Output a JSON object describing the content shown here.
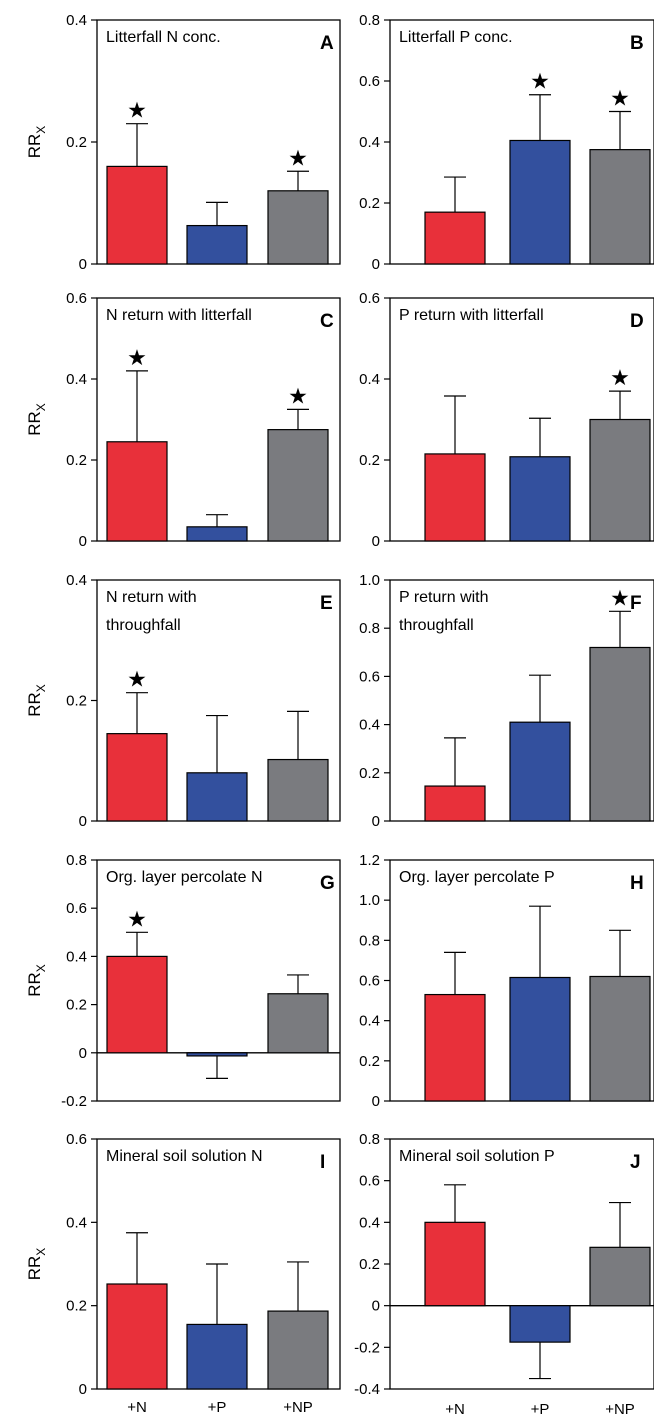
{
  "figure": {
    "y_axis_label": "RR",
    "y_axis_label_subscript": "X",
    "categories": [
      "+N",
      "+P",
      "+NP"
    ],
    "colors": {
      "+N": "#e8303a",
      "+P": "#33509e",
      "+NP": "#7a7b7f"
    },
    "significance_marker": "★"
  },
  "chart_data": [
    {
      "panel": "A",
      "type": "bar",
      "title_lines": [
        "Litterfall N conc."
      ],
      "ylim": [
        0,
        0.4
      ],
      "yticks": [
        "0",
        "0.2",
        "0.4"
      ],
      "categories": [
        "+N",
        "+P",
        "+NP"
      ],
      "values": [
        0.16,
        0.063,
        0.12
      ],
      "error_upper": [
        0.07,
        0.038,
        0.032
      ],
      "significant": [
        true,
        false,
        true
      ]
    },
    {
      "panel": "B",
      "type": "bar",
      "title_lines": [
        "Litterfall P conc."
      ],
      "ylim": [
        0,
        0.8
      ],
      "yticks": [
        "0",
        "0.2",
        "0.4",
        "0.6",
        "0.8"
      ],
      "categories": [
        "+N",
        "+P",
        "+NP"
      ],
      "values": [
        0.17,
        0.405,
        0.375
      ],
      "error_upper": [
        0.115,
        0.15,
        0.125
      ],
      "significant": [
        false,
        true,
        true
      ]
    },
    {
      "panel": "C",
      "type": "bar",
      "title_lines": [
        "N return with litterfall"
      ],
      "ylim": [
        0,
        0.6
      ],
      "yticks": [
        "0",
        "0.2",
        "0.4",
        "0.6"
      ],
      "categories": [
        "+N",
        "+P",
        "+NP"
      ],
      "values": [
        0.245,
        0.035,
        0.275
      ],
      "error_upper": [
        0.175,
        0.03,
        0.05
      ],
      "significant": [
        true,
        false,
        true
      ]
    },
    {
      "panel": "D",
      "type": "bar",
      "title_lines": [
        "P return with litterfall"
      ],
      "ylim": [
        0,
        0.6
      ],
      "yticks": [
        "0",
        "0.2",
        "0.4",
        "0.6"
      ],
      "categories": [
        "+N",
        "+P",
        "+NP"
      ],
      "values": [
        0.215,
        0.208,
        0.3
      ],
      "error_upper": [
        0.143,
        0.095,
        0.07
      ],
      "significant": [
        false,
        false,
        true
      ]
    },
    {
      "panel": "E",
      "type": "bar",
      "title_lines": [
        "N return with",
        "throughfall"
      ],
      "ylim": [
        0,
        0.4
      ],
      "yticks": [
        "0",
        "0.2",
        "0.4"
      ],
      "categories": [
        "+N",
        "+P",
        "+NP"
      ],
      "values": [
        0.145,
        0.08,
        0.102
      ],
      "error_upper": [
        0.068,
        0.095,
        0.08
      ],
      "significant": [
        true,
        false,
        false
      ]
    },
    {
      "panel": "F",
      "type": "bar",
      "title_lines": [
        "P return with",
        "throughfall"
      ],
      "ylim": [
        0,
        1.0
      ],
      "yticks": [
        "0",
        "0.2",
        "0.4",
        "0.6",
        "0.8",
        "1.0"
      ],
      "categories": [
        "+N",
        "+P",
        "+NP"
      ],
      "values": [
        0.145,
        0.41,
        0.72
      ],
      "error_upper": [
        0.2,
        0.195,
        0.15
      ],
      "significant": [
        false,
        false,
        true
      ]
    },
    {
      "panel": "G",
      "type": "bar",
      "title_lines": [
        "Org. layer percolate N"
      ],
      "ylim": [
        -0.2,
        0.8
      ],
      "yticks": [
        "-0.2",
        "0",
        "0.2",
        "0.4",
        "0.6",
        "0.8"
      ],
      "categories": [
        "+N",
        "+P",
        "+NP"
      ],
      "values": [
        0.4,
        -0.013,
        0.245
      ],
      "error_upper": [
        0.1,
        0.093,
        0.078
      ],
      "significant": [
        true,
        false,
        false
      ]
    },
    {
      "panel": "H",
      "type": "bar",
      "title_lines": [
        "Org. layer percolate P"
      ],
      "ylim": [
        0,
        1.2
      ],
      "yticks": [
        "0",
        "0.2",
        "0.4",
        "0.6",
        "0.8",
        "1.0",
        "1.2"
      ],
      "categories": [
        "+N",
        "+P",
        "+NP"
      ],
      "values": [
        0.53,
        0.615,
        0.62
      ],
      "error_upper": [
        0.21,
        0.355,
        0.23
      ],
      "significant": [
        false,
        false,
        false
      ]
    },
    {
      "panel": "I",
      "type": "bar",
      "title_lines": [
        "Mineral soil solution N"
      ],
      "ylim": [
        0,
        0.6
      ],
      "yticks": [
        "0",
        "0.2",
        "0.4",
        "0.6"
      ],
      "categories": [
        "+N",
        "+P",
        "+NP"
      ],
      "values": [
        0.252,
        0.155,
        0.187
      ],
      "error_upper": [
        0.123,
        0.145,
        0.118
      ],
      "significant": [
        false,
        false,
        false
      ]
    },
    {
      "panel": "J",
      "type": "bar",
      "title_lines": [
        "Mineral soil solution P"
      ],
      "ylim": [
        -0.4,
        0.8
      ],
      "yticks": [
        "-0.4",
        "-0.2",
        "0",
        "0.2",
        "0.4",
        "0.6",
        "0.8"
      ],
      "categories": [
        "+N",
        "+P",
        "+NP"
      ],
      "values": [
        0.4,
        -0.175,
        0.28
      ],
      "error_upper": [
        0.18,
        0.175,
        0.215
      ],
      "significant": [
        false,
        false,
        false
      ]
    }
  ]
}
